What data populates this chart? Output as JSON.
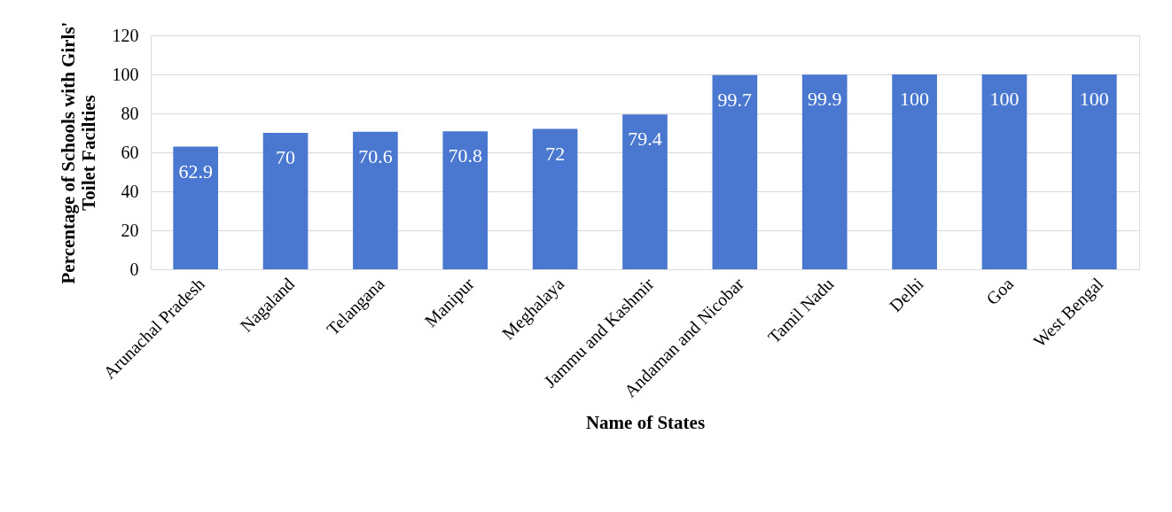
{
  "chart_data": {
    "type": "bar",
    "categories": [
      "Arunachal Pradesh",
      "Nagaland",
      "Telangana",
      "Manipur",
      "Meghalaya",
      "Jammu and Kashmir",
      "Andaman and Nicobar",
      "Tamil Nadu",
      "Delhi",
      "Goa",
      "West Bengal"
    ],
    "values": [
      62.9,
      70,
      70.6,
      70.8,
      72,
      79.4,
      99.7,
      99.9,
      100,
      100,
      100
    ],
    "color": "#4a78d0",
    "xlabel": "Name of States",
    "ylabel": "Percentage of Schools with Girls'\nToilet Facilties",
    "ylim": [
      0,
      120
    ],
    "yticks": [
      0,
      20,
      40,
      60,
      80,
      100,
      120
    ],
    "grid": "y",
    "data_labels": true
  }
}
